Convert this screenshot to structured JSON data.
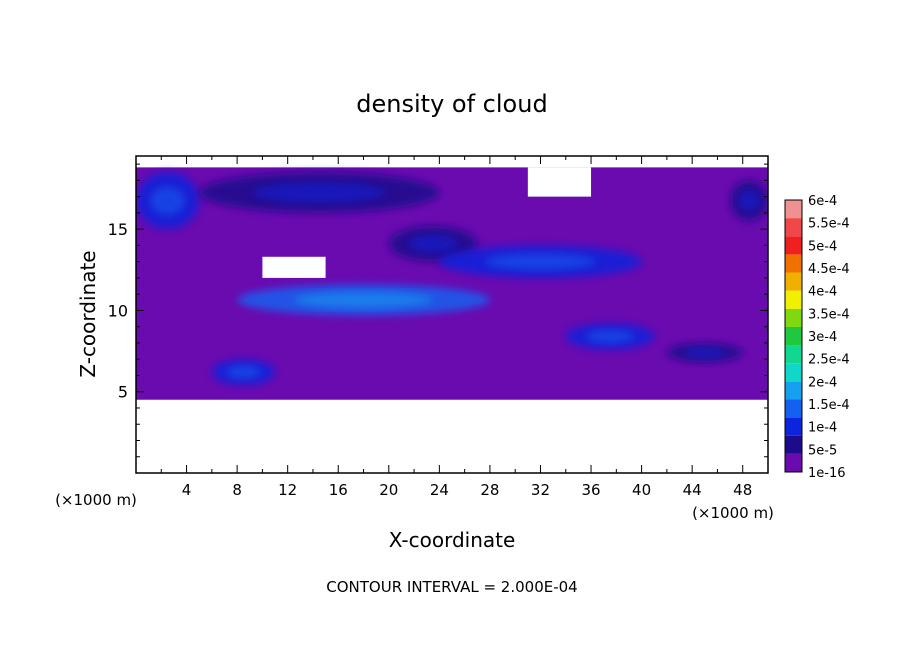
{
  "chart_data": {
    "type": "heatmap",
    "title": "density of cloud",
    "xlabel": "X-coordinate",
    "ylabel": "Z-coordinate",
    "x_units": "(×1000 m)",
    "y_units": "(×1000 m)",
    "x_ticks": [
      "4",
      "8",
      "12",
      "16",
      "20",
      "24",
      "28",
      "32",
      "36",
      "40",
      "44",
      "48"
    ],
    "y_ticks": [
      "5",
      "10",
      "15"
    ],
    "xlim": [
      0,
      50
    ],
    "ylim": [
      0,
      19.5
    ],
    "footer": "CONTOUR INTERVAL = 2.000E-04",
    "colorbar": {
      "labels": [
        "1e-16",
        "5e-5",
        "1e-4",
        "1.5e-4",
        "2e-4",
        "2.5e-4",
        "3e-4",
        "3.5e-4",
        "4e-4",
        "4.5e-4",
        "5e-4",
        "5.5e-4",
        "6e-4"
      ],
      "colors": [
        "#6a0bb0",
        "#1c0c8c",
        "#0c24dc",
        "#1460f0",
        "#18a0f0",
        "#10d8c8",
        "#10d890",
        "#20c840",
        "#80d810",
        "#f0f000",
        "#f0b000",
        "#f07000",
        "#f02020",
        "#f04848",
        "#f09090"
      ]
    },
    "field": {
      "background_level": "1e-16",
      "cloud_extent_z": [
        4.5,
        18.8
      ],
      "clear_regions": [
        {
          "x": [
            0,
            50
          ],
          "z": [
            0,
            4.5
          ]
        },
        {
          "x": [
            31,
            36
          ],
          "z": [
            17,
            18.8
          ]
        },
        {
          "x": [
            10,
            15
          ],
          "z": [
            12,
            13.3
          ]
        }
      ],
      "high_density_regions": [
        {
          "x": [
            0,
            5
          ],
          "z": [
            15,
            18.5
          ],
          "level": "1e-4"
        },
        {
          "x": [
            5,
            24
          ],
          "z": [
            16,
            18.5
          ],
          "level": "5e-5"
        },
        {
          "x": [
            20,
            27
          ],
          "z": [
            13,
            15.2
          ],
          "level": "5e-5"
        },
        {
          "x": [
            24,
            40
          ],
          "z": [
            12,
            14
          ],
          "level": "1e-4"
        },
        {
          "x": [
            8,
            28
          ],
          "z": [
            9.7,
            11.6
          ],
          "level": "1.5e-4"
        },
        {
          "x": [
            34,
            41
          ],
          "z": [
            7.6,
            9.2
          ],
          "level": "1e-4"
        },
        {
          "x": [
            42,
            48
          ],
          "z": [
            6.8,
            8.0
          ],
          "level": "5e-5"
        },
        {
          "x": [
            6,
            11
          ],
          "z": [
            5.4,
            7.0
          ],
          "level": "1e-4"
        },
        {
          "x": [
            47,
            50
          ],
          "z": [
            15.5,
            18.0
          ],
          "level": "5e-5"
        }
      ]
    }
  }
}
